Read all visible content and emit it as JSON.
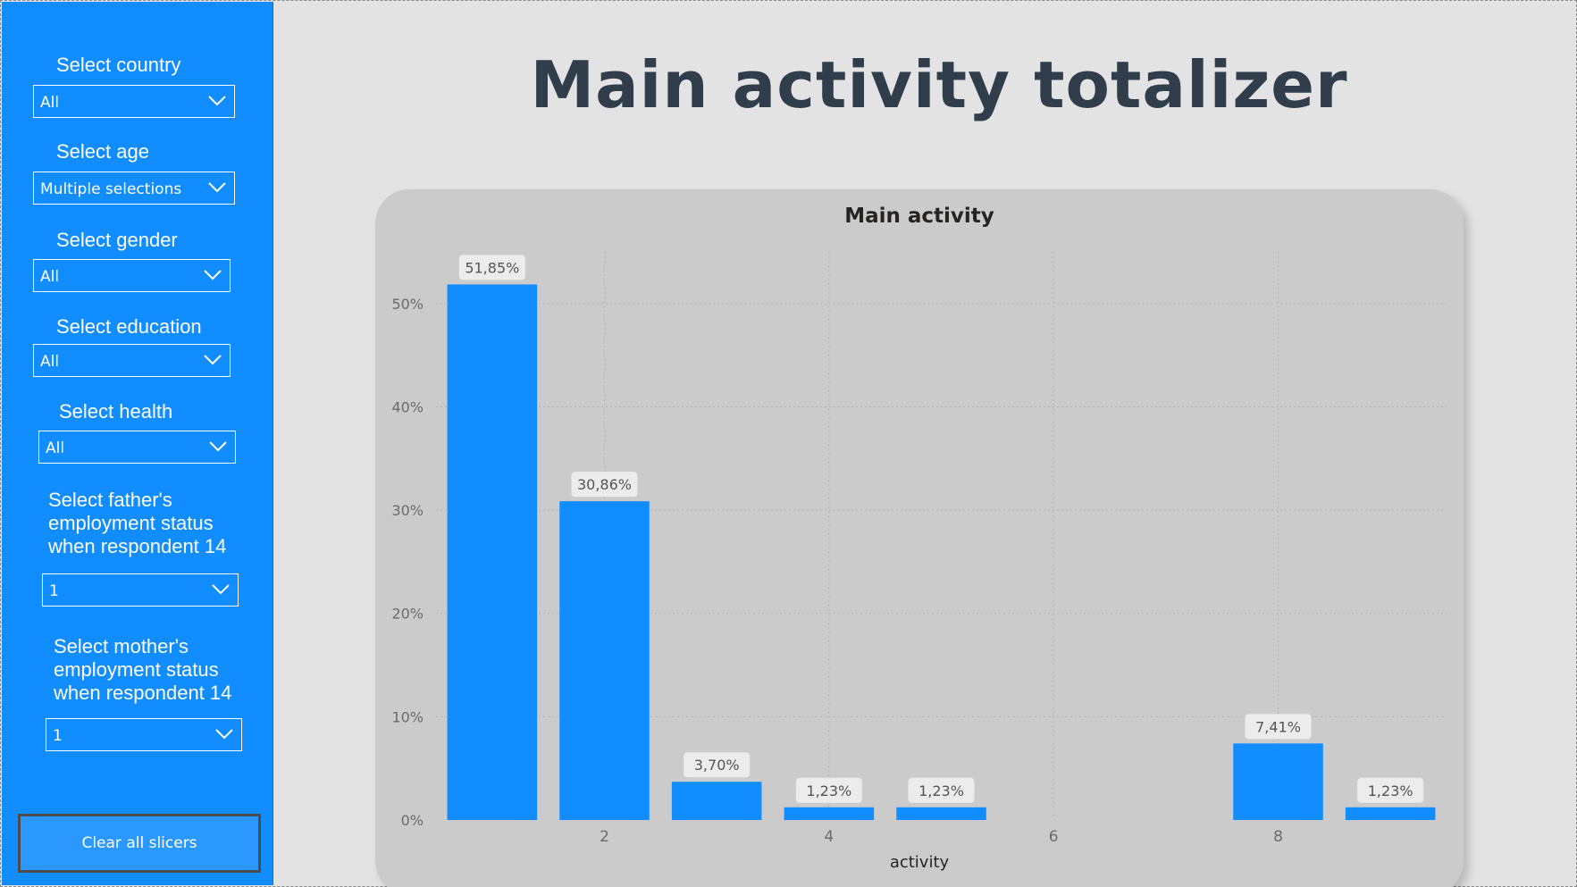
{
  "sidebar": {
    "slicers": [
      {
        "title": "Select country",
        "value": "All"
      },
      {
        "title": "Select age",
        "value": "Multiple selections"
      },
      {
        "title": "Select gender",
        "value": "All"
      },
      {
        "title": "Select education",
        "value": "All"
      },
      {
        "title": "Select health",
        "value": "All"
      },
      {
        "title": "Select father's\nemployment status\nwhen respondent 14",
        "value": "1"
      },
      {
        "title": "Select mother's\nemployment status\nwhen respondent 14",
        "value": "1"
      }
    ],
    "clear_button_label": "Clear all slicers"
  },
  "page": {
    "title": "Main activity totalizer"
  },
  "icons": {
    "dropdown": "chevron-down-icon"
  },
  "colors": {
    "sidebar_bg": "#118dff",
    "bar": "#118dff",
    "title": "#2f3e4a"
  },
  "chart_data": {
    "type": "bar",
    "title": "Main activity",
    "xlabel": "activity",
    "ylabel": "",
    "x": [
      1,
      2,
      3,
      4,
      5,
      8,
      9
    ],
    "values": [
      51.85,
      30.86,
      3.7,
      1.23,
      1.23,
      7.41,
      1.23
    ],
    "data_labels": [
      "51,85%",
      "30,86%",
      "3,70%",
      "1,23%",
      "1,23%",
      "7,41%",
      "1,23%"
    ],
    "x_ticks": [
      2,
      4,
      6,
      8
    ],
    "x_tick_labels": [
      "2",
      "4",
      "6",
      "8"
    ],
    "xlim": [
      0.5,
      9.5
    ],
    "y_ticks": [
      0,
      10,
      20,
      30,
      40,
      50
    ],
    "y_tick_labels": [
      "0%",
      "10%",
      "20%",
      "30%",
      "40%",
      "50%"
    ],
    "ylim": [
      0,
      55
    ],
    "grid": true
  }
}
